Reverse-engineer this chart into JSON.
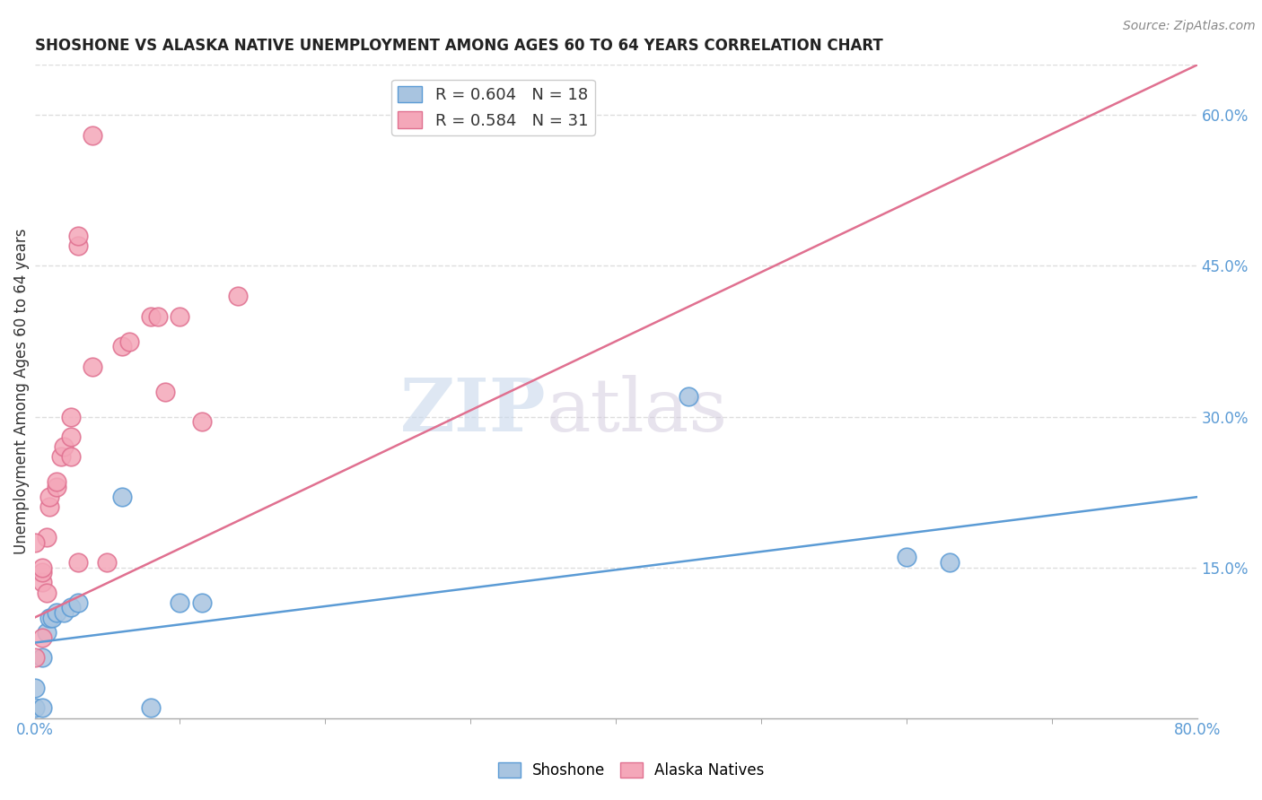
{
  "title": "SHOSHONE VS ALASKA NATIVE UNEMPLOYMENT AMONG AGES 60 TO 64 YEARS CORRELATION CHART",
  "source": "Source: ZipAtlas.com",
  "ylabel": "Unemployment Among Ages 60 to 64 years",
  "xlim": [
    0.0,
    0.8
  ],
  "ylim": [
    0.0,
    0.65
  ],
  "xtick_labels_shown": [
    "0.0%",
    "80.0%"
  ],
  "xtick_labels_pos": [
    0.0,
    0.8
  ],
  "xtick_minor": [
    0.1,
    0.2,
    0.3,
    0.4,
    0.5,
    0.6,
    0.7
  ],
  "yticks_right": [
    0.15,
    0.3,
    0.45,
    0.6
  ],
  "shoshone_color": "#a8c4e0",
  "alaska_color": "#f4a7b9",
  "shoshone_line_color": "#5b9bd5",
  "alaska_line_color": "#e07090",
  "shoshone_R": 0.604,
  "shoshone_N": 18,
  "alaska_R": 0.584,
  "alaska_N": 31,
  "shoshone_points": [
    [
      0.0,
      0.01
    ],
    [
      0.0,
      0.03
    ],
    [
      0.005,
      0.01
    ],
    [
      0.005,
      0.06
    ],
    [
      0.008,
      0.085
    ],
    [
      0.01,
      0.1
    ],
    [
      0.012,
      0.1
    ],
    [
      0.015,
      0.105
    ],
    [
      0.02,
      0.105
    ],
    [
      0.025,
      0.11
    ],
    [
      0.03,
      0.115
    ],
    [
      0.06,
      0.22
    ],
    [
      0.08,
      0.01
    ],
    [
      0.1,
      0.115
    ],
    [
      0.115,
      0.115
    ],
    [
      0.45,
      0.32
    ],
    [
      0.6,
      0.16
    ],
    [
      0.63,
      0.155
    ]
  ],
  "alaska_points": [
    [
      0.0,
      0.06
    ],
    [
      0.005,
      0.08
    ],
    [
      0.005,
      0.135
    ],
    [
      0.005,
      0.145
    ],
    [
      0.005,
      0.15
    ],
    [
      0.008,
      0.125
    ],
    [
      0.008,
      0.18
    ],
    [
      0.01,
      0.21
    ],
    [
      0.01,
      0.22
    ],
    [
      0.015,
      0.23
    ],
    [
      0.015,
      0.235
    ],
    [
      0.018,
      0.26
    ],
    [
      0.02,
      0.27
    ],
    [
      0.025,
      0.28
    ],
    [
      0.025,
      0.3
    ],
    [
      0.025,
      0.26
    ],
    [
      0.03,
      0.155
    ],
    [
      0.04,
      0.35
    ],
    [
      0.05,
      0.155
    ],
    [
      0.06,
      0.37
    ],
    [
      0.065,
      0.375
    ],
    [
      0.08,
      0.4
    ],
    [
      0.085,
      0.4
    ],
    [
      0.09,
      0.325
    ],
    [
      0.1,
      0.4
    ],
    [
      0.115,
      0.295
    ],
    [
      0.14,
      0.42
    ],
    [
      0.04,
      0.58
    ],
    [
      0.03,
      0.47
    ],
    [
      0.03,
      0.48
    ],
    [
      0.0,
      0.175
    ]
  ],
  "shoshone_line": [
    0.0,
    0.075,
    0.8,
    0.22
  ],
  "alaska_line": [
    0.0,
    0.1,
    0.8,
    0.65
  ],
  "watermark_zip": "ZIP",
  "watermark_atlas": "atlas",
  "background_color": "#ffffff",
  "grid_color": "#dddddd"
}
